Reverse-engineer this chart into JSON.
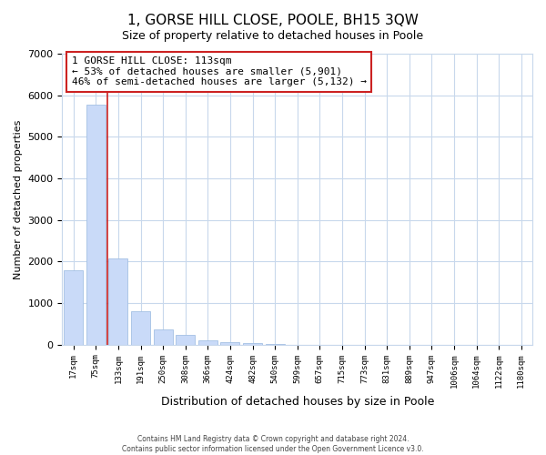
{
  "title": "1, GORSE HILL CLOSE, POOLE, BH15 3QW",
  "subtitle": "Size of property relative to detached houses in Poole",
  "xlabel": "Distribution of detached houses by size in Poole",
  "ylabel": "Number of detached properties",
  "bar_labels": [
    "17sqm",
    "75sqm",
    "133sqm",
    "191sqm",
    "250sqm",
    "308sqm",
    "366sqm",
    "424sqm",
    "482sqm",
    "540sqm",
    "599sqm",
    "657sqm",
    "715sqm",
    "773sqm",
    "831sqm",
    "889sqm",
    "947sqm",
    "1006sqm",
    "1064sqm",
    "1122sqm",
    "1180sqm"
  ],
  "bar_values": [
    1780,
    5780,
    2070,
    810,
    370,
    230,
    110,
    60,
    30,
    10,
    5,
    2,
    1,
    0,
    0,
    0,
    0,
    0,
    0,
    0,
    0
  ],
  "bar_color": "#c9daf8",
  "bar_edge_color": "#a4c0e4",
  "marker_color": "#cc2222",
  "ylim": [
    0,
    7000
  ],
  "yticks": [
    0,
    1000,
    2000,
    3000,
    4000,
    5000,
    6000,
    7000
  ],
  "legend_title": "1 GORSE HILL CLOSE: 113sqm",
  "legend_line1": "← 53% of detached houses are smaller (5,901)",
  "legend_line2": "46% of semi-detached houses are larger (5,132) →",
  "footnote1": "Contains HM Land Registry data © Crown copyright and database right 2024.",
  "footnote2": "Contains public sector information licensed under the Open Government Licence v3.0.",
  "bg_color": "#ffffff",
  "grid_color": "#c8d8ec",
  "title_fontsize": 11,
  "subtitle_fontsize": 9
}
